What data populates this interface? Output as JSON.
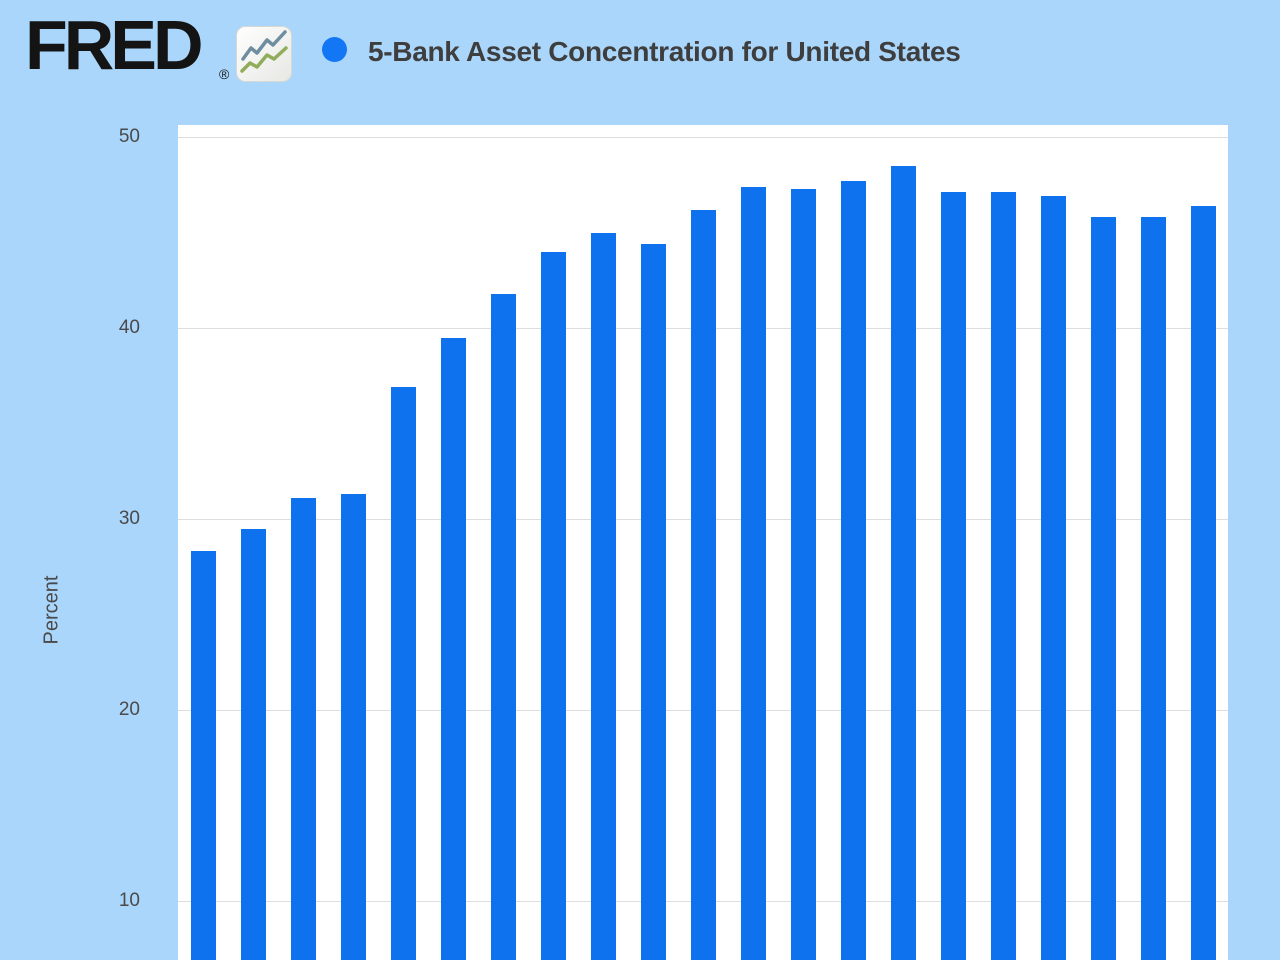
{
  "header": {
    "logo_text": "FRED",
    "logo_registered_mark": "®",
    "series_title": "5-Bank Asset Concentration for United States"
  },
  "chart_data": {
    "type": "bar",
    "title": "5-Bank Asset Concentration for United States",
    "xlabel": "",
    "ylabel": "Percent",
    "y_ticks": [
      50,
      40,
      30,
      20,
      10
    ],
    "x_tick_labels_visible": false,
    "grid": true,
    "legend_position": "top",
    "legend_marker": "circle",
    "ylim_visible": [
      6.8,
      50.6
    ],
    "bar_count": 21,
    "values": [
      28.3,
      29.5,
      31.1,
      31.3,
      36.9,
      39.5,
      41.8,
      44.0,
      45.0,
      44.4,
      46.2,
      47.4,
      47.3,
      47.7,
      48.5,
      47.1,
      47.1,
      46.9,
      45.8,
      45.8,
      46.4
    ]
  },
  "colors": {
    "background": "#aad6fb",
    "plot_background": "#ffffff",
    "bar": "#0e72ef",
    "legend_dot": "#1276f5",
    "gridline": "#dedede",
    "title_text": "#3e3e3e",
    "axis_text": "#4a4a4a",
    "logo_text": "#141414",
    "logo_icon_line_top": "#6e8da1",
    "logo_icon_line_bottom": "#8fad5a"
  }
}
